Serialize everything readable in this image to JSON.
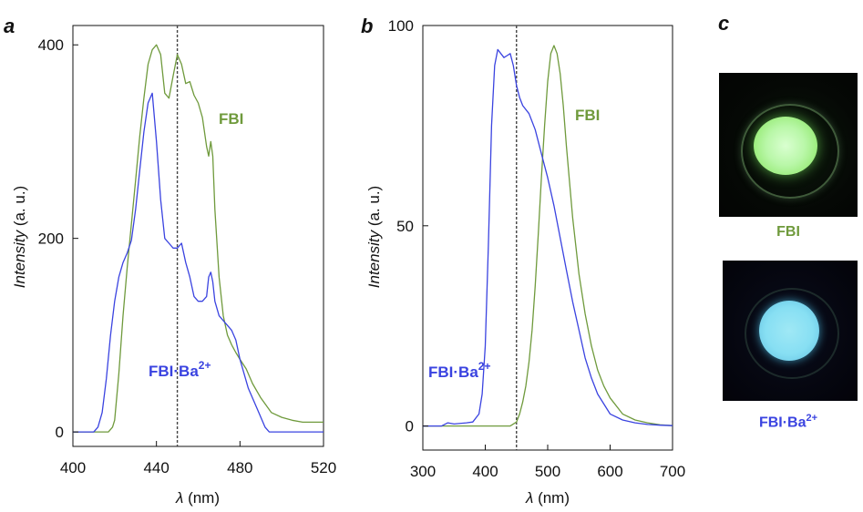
{
  "panels": {
    "a": "a",
    "b": "b",
    "c": "c"
  },
  "colors": {
    "fbi": "#6f9a3c",
    "fbi_ba": "#3a43e0",
    "axis": "#111111",
    "dotted_line": "#444444"
  },
  "chart_data": [
    {
      "panel": "a",
      "type": "line",
      "xlabel_italic": "λ",
      "xlabel_unit": " (nm)",
      "ylabel_italic": "Intensity",
      "ylabel_unit": " (a. u.)",
      "xlim": [
        400,
        520
      ],
      "ylim": [
        -15,
        420
      ],
      "xticks": [
        400,
        440,
        480,
        520
      ],
      "yticks": [
        0,
        200,
        400
      ],
      "vline_x": 450,
      "grid": false,
      "series": [
        {
          "name": "FBI",
          "color_key": "fbi",
          "x": [
            400,
            410,
            417,
            419,
            420,
            422,
            424,
            426,
            428,
            430,
            432,
            434,
            436,
            438,
            440,
            442,
            444,
            446,
            448,
            450,
            452,
            454,
            456,
            458,
            460,
            462,
            464,
            465,
            466,
            467,
            468,
            470,
            472,
            474,
            476,
            478,
            480,
            483,
            486,
            490,
            495,
            500,
            505,
            510,
            515,
            520
          ],
          "y": [
            0,
            0,
            0,
            5,
            12,
            60,
            120,
            170,
            215,
            260,
            305,
            345,
            380,
            395,
            400,
            390,
            350,
            345,
            368,
            390,
            380,
            360,
            362,
            348,
            340,
            325,
            295,
            285,
            300,
            285,
            230,
            160,
            120,
            100,
            90,
            82,
            75,
            65,
            50,
            35,
            20,
            15,
            12,
            10,
            10,
            10
          ]
        },
        {
          "name": "FBI·Ba2+",
          "color_key": "fbi_ba",
          "x": [
            400,
            408,
            410,
            412,
            414,
            416,
            418,
            420,
            422,
            424,
            426,
            428,
            430,
            432,
            434,
            436,
            438,
            440,
            442,
            444,
            446,
            448,
            450,
            452,
            454,
            456,
            458,
            460,
            462,
            464,
            465,
            466,
            467,
            468,
            470,
            472,
            474,
            476,
            478,
            480,
            484,
            488,
            492,
            494,
            496,
            500,
            520
          ],
          "y": [
            0,
            0,
            0,
            5,
            20,
            55,
            100,
            135,
            160,
            175,
            185,
            198,
            230,
            270,
            310,
            340,
            350,
            300,
            240,
            200,
            195,
            190,
            190,
            195,
            175,
            160,
            140,
            135,
            135,
            140,
            160,
            165,
            155,
            135,
            120,
            115,
            110,
            105,
            95,
            75,
            45,
            25,
            5,
            0,
            0,
            0,
            0
          ]
        }
      ]
    },
    {
      "panel": "b",
      "type": "line",
      "xlabel_italic": "λ",
      "xlabel_unit": " (nm)",
      "ylabel_italic": "Intensity",
      "ylabel_unit": " (a. u.)",
      "xlim": [
        300,
        700
      ],
      "ylim": [
        -6,
        100
      ],
      "xticks": [
        300,
        400,
        500,
        600,
        700
      ],
      "yticks": [
        0,
        50,
        100
      ],
      "vline_x": 450,
      "grid": false,
      "series": [
        {
          "name": "FBI",
          "color_key": "fbi",
          "x": [
            300,
            440,
            445,
            450,
            455,
            460,
            465,
            470,
            475,
            480,
            485,
            490,
            495,
            500,
            505,
            510,
            515,
            520,
            525,
            530,
            540,
            550,
            560,
            570,
            580,
            590,
            600,
            620,
            640,
            660,
            680,
            700
          ],
          "y": [
            0,
            0,
            0.5,
            1,
            3,
            6,
            10,
            16,
            24,
            35,
            48,
            62,
            75,
            86,
            93,
            95,
            93,
            88,
            80,
            70,
            52,
            38,
            28,
            20,
            14,
            10,
            7,
            3,
            1.5,
            0.8,
            0.3,
            0.1
          ]
        },
        {
          "name": "FBI·Ba2+",
          "color_key": "fbi_ba",
          "x": [
            300,
            330,
            340,
            350,
            370,
            380,
            390,
            395,
            400,
            405,
            410,
            415,
            420,
            425,
            430,
            435,
            440,
            445,
            450,
            455,
            460,
            470,
            480,
            490,
            500,
            510,
            520,
            530,
            540,
            550,
            560,
            570,
            580,
            600,
            620,
            640,
            660,
            680,
            700
          ],
          "y": [
            0,
            0,
            0.8,
            0.5,
            0.8,
            1,
            3,
            8,
            20,
            45,
            75,
            90,
            94,
            93,
            92,
            92.5,
            93,
            90,
            85,
            82,
            80,
            78,
            74,
            68,
            62,
            55,
            47,
            39,
            31,
            24,
            17,
            12,
            8,
            3,
            1.5,
            0.8,
            0.4,
            0.2,
            0.1
          ]
        }
      ]
    }
  ],
  "photos": {
    "fbi_label": "FBI",
    "fbi_ba_label_main": "FBI·Ba",
    "fbi_ba_label_sup": "2+"
  },
  "legend": {
    "a_fbi": "FBI",
    "a_fbi_ba_main": "FBI·Ba",
    "a_fbi_ba_sup": "2+",
    "b_fbi": "FBI",
    "b_fbi_ba_main": "FBI·Ba",
    "b_fbi_ba_sup": "2+"
  }
}
